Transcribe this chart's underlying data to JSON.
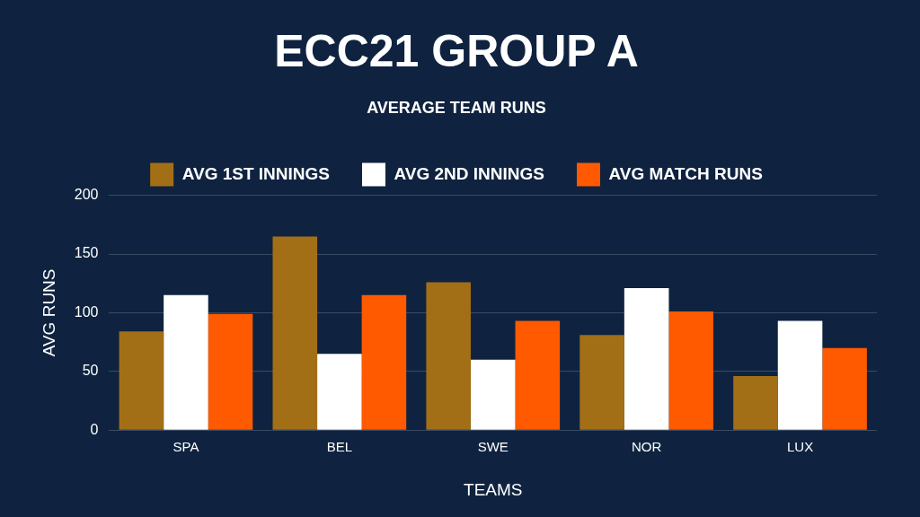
{
  "chart_data": {
    "type": "bar",
    "title": "ECC21 GROUP A",
    "subtitle": "AVERAGE TEAM RUNS",
    "xlabel": "TEAMS",
    "ylabel": "AVG RUNS",
    "categories": [
      "SPA",
      "BEL",
      "SWE",
      "NOR",
      "LUX"
    ],
    "series": [
      {
        "name": "AVG 1ST INNINGS",
        "color": "#a36f16",
        "values": [
          84,
          165,
          126,
          81,
          46
        ]
      },
      {
        "name": "AVG 2ND INNINGS",
        "color": "#ffffff",
        "values": [
          115,
          65,
          60,
          121,
          93
        ]
      },
      {
        "name": "AVG MATCH RUNS",
        "color": "#ff5a00",
        "values": [
          99,
          115,
          93,
          101,
          70
        ]
      }
    ],
    "ylim": [
      0,
      200
    ],
    "yticks": [
      0,
      50,
      100,
      150,
      200
    ],
    "grid": "y",
    "legend": "top"
  }
}
